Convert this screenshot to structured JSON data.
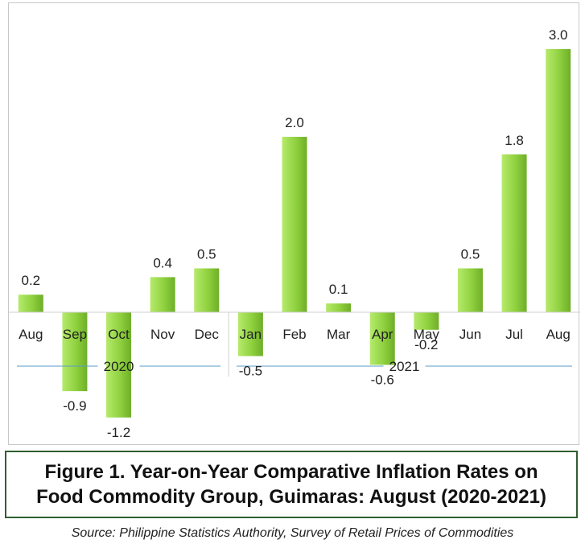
{
  "chart_data": {
    "type": "bar",
    "categories": [
      "Aug",
      "Sep",
      "Oct",
      "Nov",
      "Dec",
      "Jan",
      "Feb",
      "Mar",
      "Apr",
      "May",
      "Jun",
      "Jul",
      "Aug"
    ],
    "values": [
      0.2,
      -0.9,
      -1.2,
      0.4,
      0.5,
      -0.5,
      2.0,
      0.1,
      -0.6,
      -0.2,
      0.5,
      1.8,
      3.0
    ],
    "value_labels": [
      "0.2",
      "-0.9",
      "-1.2",
      "0.4",
      "0.5",
      "-0.5",
      "2.0",
      "0.1",
      "-0.6",
      "-0.2",
      "0.5",
      "1.8",
      "3.0"
    ],
    "groups": [
      {
        "label": "2020",
        "categories": [
          "Aug",
          "Sep",
          "Oct",
          "Nov",
          "Dec"
        ]
      },
      {
        "label": "2021",
        "categories": [
          "Jan",
          "Feb",
          "Mar",
          "Apr",
          "May",
          "Jun",
          "Jul",
          "Aug"
        ]
      }
    ],
    "ylim": [
      -1.4,
      3.3
    ],
    "grid": false,
    "legend": "none",
    "bar_color": "#8fd13f"
  },
  "caption": "Figure 1. Year-on-Year Comparative Inflation Rates on\nFood Commodity Group, Guimaras: August (2020-2021)",
  "source": "Source: Philippine Statistics Authority, Survey of Retail Prices of Commodities",
  "colors": {
    "bar_light": "#b6ea6c",
    "bar_dark": "#6fae28",
    "group_line": "#5a9bc8",
    "caption_border": "#2f5f2f"
  }
}
